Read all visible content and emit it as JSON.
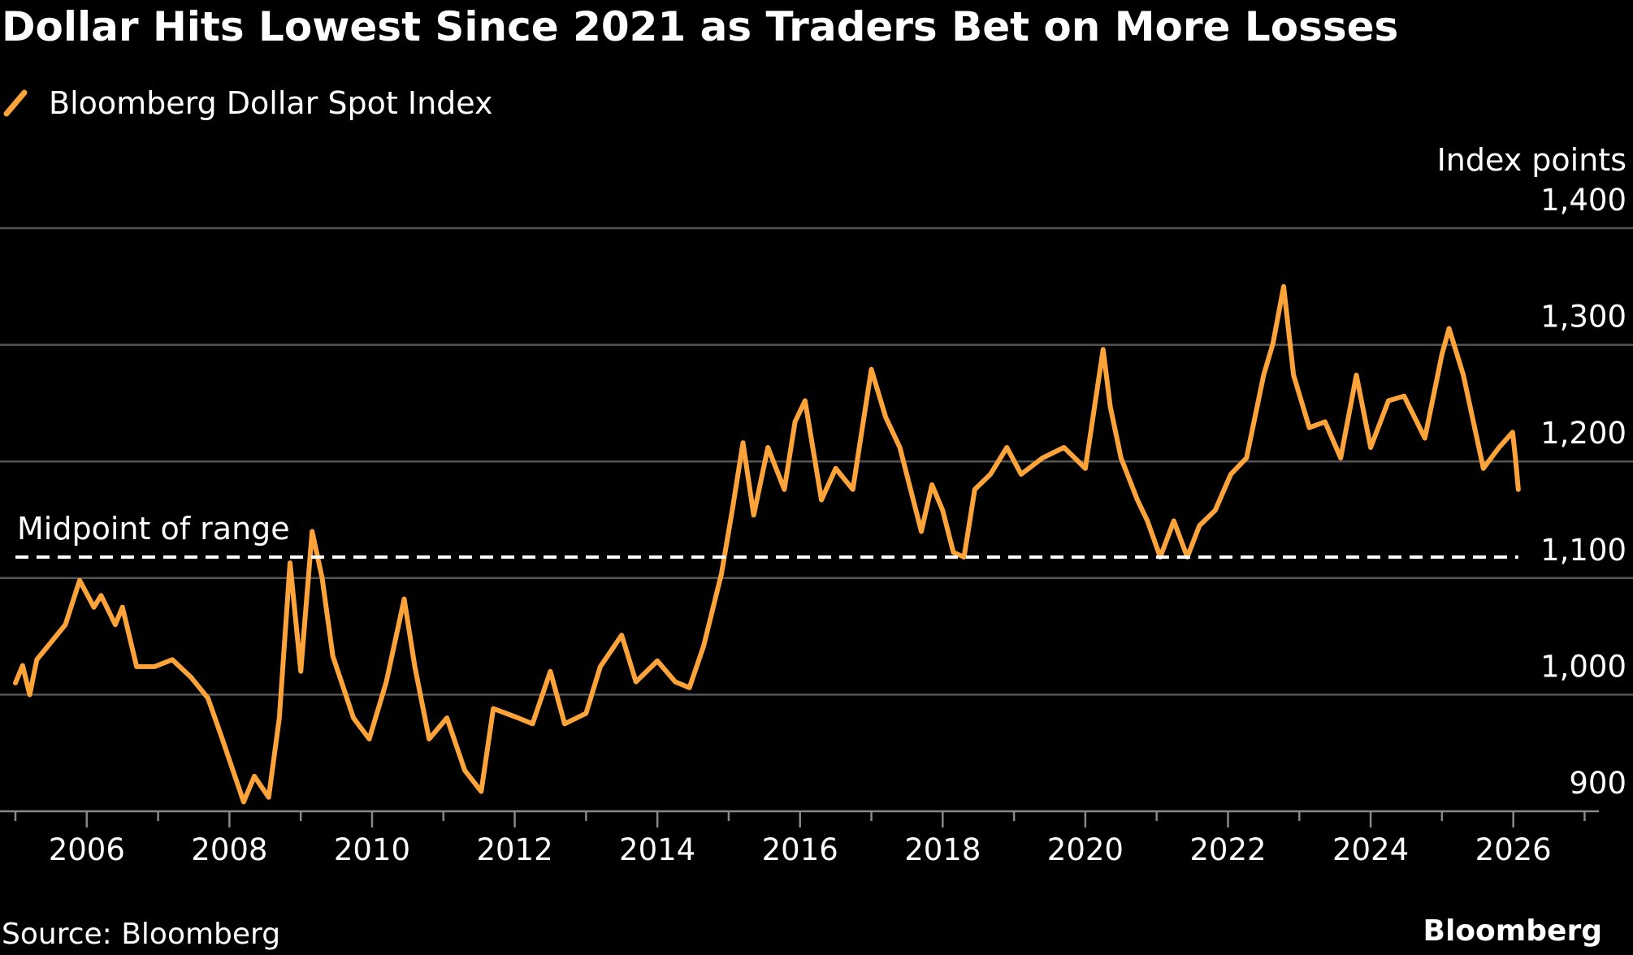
{
  "chart_data": {
    "type": "line",
    "title": "Dollar Hits Lowest Since 2021 as Traders Bet on More Losses",
    "y_axis_label": "Index points",
    "source": "Source: Bloomberg",
    "brand": "Bloomberg",
    "grid": true,
    "xlim": [
      2005,
      2027.2
    ],
    "xticks": [
      2006,
      2008,
      2010,
      2012,
      2014,
      2016,
      2018,
      2020,
      2022,
      2024,
      2026
    ],
    "ylim": [
      900,
      1400
    ],
    "yticks": [
      900,
      {
        "value": 1000,
        "label": "1,000"
      },
      {
        "value": 1100,
        "label": "1,100"
      },
      {
        "value": 1200,
        "label": "1,200"
      },
      {
        "value": 1300,
        "label": "1,300"
      },
      {
        "value": 1400,
        "label": "1,400"
      }
    ],
    "reference_line": {
      "label": "Midpoint of range",
      "value": 1118,
      "color": "#ffffff"
    },
    "x": [
      2005.0,
      2005.1,
      2005.2,
      2005.3,
      2005.5,
      2005.7,
      2005.9,
      2006.1,
      2006.2,
      2006.4,
      2006.5,
      2006.7,
      2006.95,
      2007.2,
      2007.46,
      2007.7,
      2007.9,
      2008.2,
      2008.35,
      2008.55,
      2008.7,
      2008.85,
      2009.0,
      2009.16,
      2009.3,
      2009.45,
      2009.74,
      2009.96,
      2010.2,
      2010.45,
      2010.6,
      2010.8,
      2011.05,
      2011.3,
      2011.53,
      2011.7,
      2012.05,
      2012.25,
      2012.5,
      2012.7,
      2013.0,
      2013.2,
      2013.5,
      2013.7,
      2014.0,
      2014.25,
      2014.45,
      2014.65,
      2014.9,
      2015.05,
      2015.2,
      2015.35,
      2015.55,
      2015.78,
      2015.93,
      2016.07,
      2016.3,
      2016.5,
      2016.74,
      2017.0,
      2017.2,
      2017.4,
      2017.7,
      2017.85,
      2018.0,
      2018.15,
      2018.3,
      2018.45,
      2018.67,
      2018.9,
      2019.1,
      2019.4,
      2019.7,
      2020.0,
      2020.25,
      2020.35,
      2020.5,
      2020.73,
      2020.87,
      2021.05,
      2021.24,
      2021.43,
      2021.6,
      2021.82,
      2022.04,
      2022.26,
      2022.5,
      2022.63,
      2022.78,
      2022.92,
      2023.14,
      2023.36,
      2023.58,
      2023.8,
      2024.0,
      2024.25,
      2024.47,
      2024.76,
      2025.0,
      2025.1,
      2025.3,
      2025.58,
      2025.8,
      2025.99,
      2026.03,
      2026.07
    ],
    "series": [
      {
        "name": "Bloomberg Dollar Spot Index",
        "color": "#fca33a",
        "values": [
          1010,
          1025,
          1000,
          1030,
          1045,
          1060,
          1098,
          1075,
          1085,
          1060,
          1075,
          1024,
          1024,
          1030,
          1015,
          997,
          962,
          908,
          930,
          912,
          980,
          1113,
          1020,
          1140,
          1100,
          1033,
          980,
          962,
          1011,
          1082,
          1024,
          962,
          980,
          935,
          917,
          988,
          980,
          975,
          1020,
          975,
          984,
          1024,
          1051,
          1011,
          1029,
          1011,
          1006,
          1042,
          1104,
          1158,
          1216,
          1154,
          1212,
          1176,
          1234,
          1252,
          1167,
          1194,
          1176,
          1279,
          1238,
          1212,
          1140,
          1180,
          1158,
          1122,
          1118,
          1176,
          1189,
          1212,
          1189,
          1203,
          1212,
          1194,
          1296,
          1247,
          1203,
          1167,
          1149,
          1118,
          1149,
          1118,
          1145,
          1158,
          1189,
          1203,
          1274,
          1301,
          1350,
          1274,
          1229,
          1234,
          1203,
          1274,
          1212,
          1252,
          1256,
          1220,
          1292,
          1314,
          1274,
          1194,
          1212,
          1225,
          1203,
          1176
        ]
      }
    ]
  }
}
